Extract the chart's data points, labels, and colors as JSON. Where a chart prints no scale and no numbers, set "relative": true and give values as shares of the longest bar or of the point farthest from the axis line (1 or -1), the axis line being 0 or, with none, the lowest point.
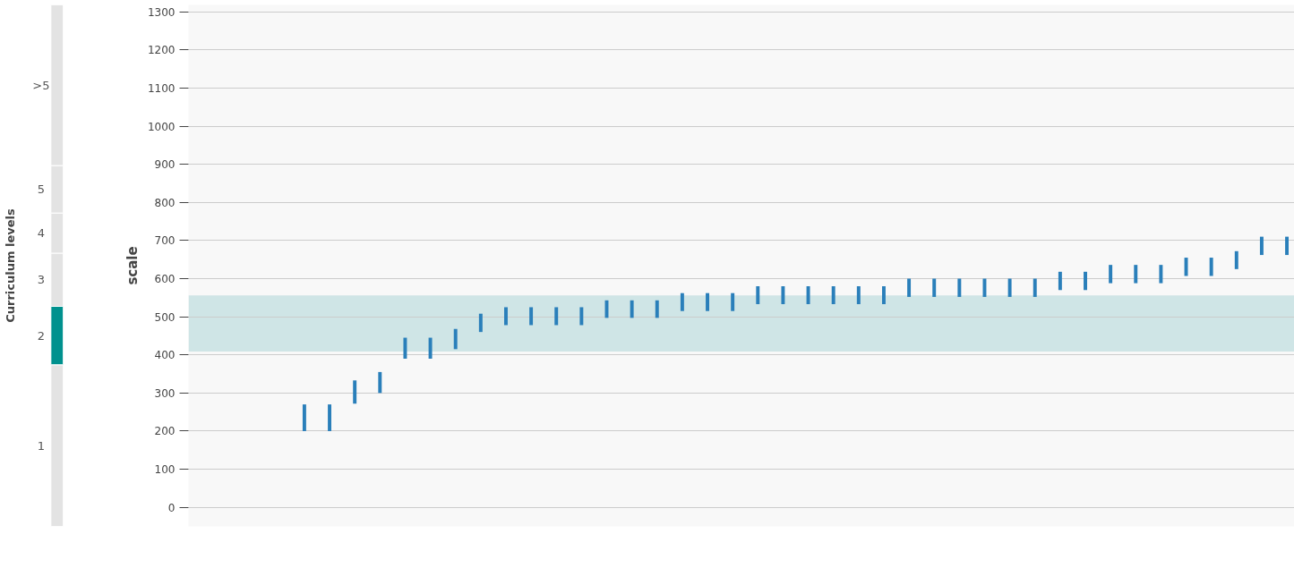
{
  "chart_data": [
    {
      "type": "bar",
      "stacked": true,
      "relative": true,
      "ylabel": "Curriculum levels",
      "categories": [
        null
      ],
      "series": [
        {
          "name": "1",
          "color": "#e3e3e3",
          "values": [
            0.31
          ]
        },
        {
          "name": "2",
          "color": "#00918e",
          "values": [
            0.112
          ]
        },
        {
          "name": "3",
          "color": "#e3e3e3",
          "values": [
            0.102
          ]
        },
        {
          "name": "4",
          "color": "#e3e3e3",
          "values": [
            0.077
          ]
        },
        {
          "name": "5",
          "color": "#e3e3e3",
          "values": [
            0.091
          ]
        },
        {
          "name": ">5",
          "color": "#e3e3e3",
          "values": [
            0.308
          ]
        }
      ]
    },
    {
      "type": "bar",
      "ylabel": "scale",
      "categories": [
        null,
        null,
        null,
        null,
        null,
        null,
        null,
        null,
        null,
        null,
        null,
        null,
        null,
        null,
        null,
        null,
        null,
        null,
        null,
        null,
        null,
        null,
        null,
        null,
        null,
        null,
        null,
        null,
        null,
        null,
        null,
        null,
        null,
        null,
        null,
        null,
        null,
        null,
        null,
        null,
        null,
        null,
        null,
        null
      ],
      "series": [
        {
          "color": "#2a7fba",
          "base": [
            null,
            null,
            null,
            null,
            200,
            200,
            272,
            300,
            390,
            390,
            415,
            460,
            478,
            478,
            478,
            478,
            497,
            497,
            497,
            515,
            515,
            515,
            533,
            533,
            533,
            533,
            533,
            533,
            552,
            552,
            552,
            552,
            552,
            552,
            570,
            570,
            588,
            588,
            588,
            607,
            607,
            625,
            662,
            662
          ],
          "values": [
            null,
            null,
            null,
            null,
            70,
            70,
            61,
            55,
            55,
            55,
            53,
            48,
            47,
            47,
            47,
            47,
            46,
            46,
            46,
            47,
            47,
            47,
            47,
            47,
            47,
            47,
            47,
            47,
            48,
            48,
            48,
            48,
            48,
            48,
            48,
            48,
            48,
            48,
            48,
            48,
            48,
            47,
            48,
            48
          ]
        }
      ],
      "ylim": [
        -50,
        1318
      ],
      "yticks": [
        0,
        100,
        200,
        300,
        400,
        500,
        600,
        700,
        800,
        900,
        1000,
        1100,
        1200,
        1300
      ],
      "bands": [
        {
          "axis": "y",
          "from": 409,
          "to": 556,
          "color": "#cfe5e6"
        }
      ],
      "grid": "y"
    }
  ]
}
